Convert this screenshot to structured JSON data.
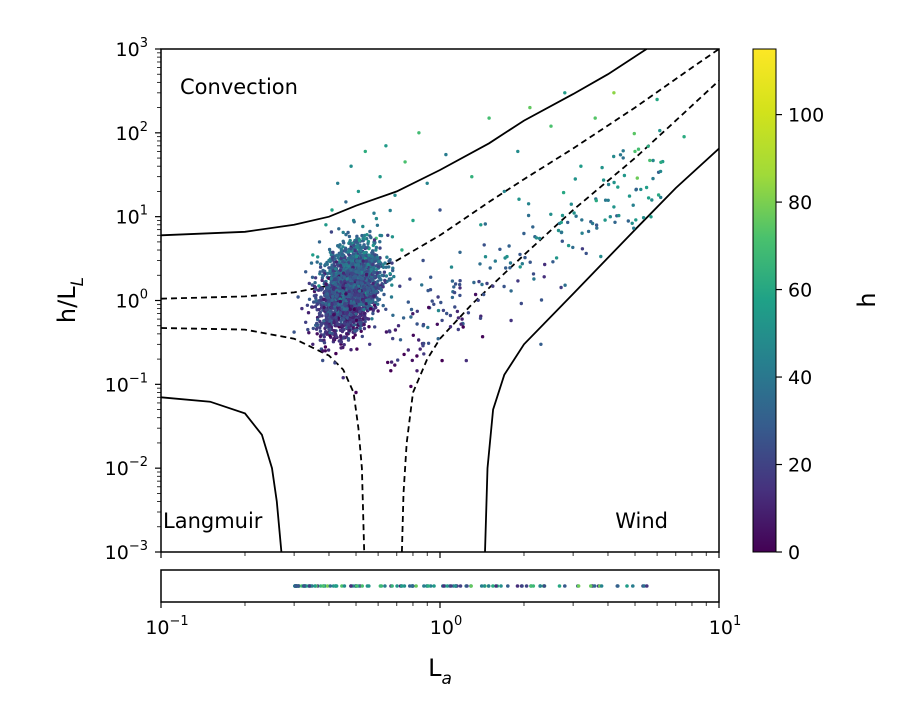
{
  "chart_data": {
    "type": "scatter",
    "title": "",
    "xlabel": "L",
    "xlabel_sub": "a",
    "ylabel": "h/L",
    "ylabel_sub": "L",
    "xscale": "log",
    "yscale": "log",
    "xlim": [
      0.1,
      10
    ],
    "ylim": [
      0.001,
      1000
    ],
    "x_ticks": [
      {
        "value": 0.1,
        "base": "10",
        "exp": "−1"
      },
      {
        "value": 1,
        "base": "10",
        "exp": "0"
      },
      {
        "value": 10,
        "base": "10",
        "exp": "1"
      }
    ],
    "y_ticks": [
      {
        "value": 0.001,
        "base": "10",
        "exp": "−3"
      },
      {
        "value": 0.01,
        "base": "10",
        "exp": "−2"
      },
      {
        "value": 0.1,
        "base": "10",
        "exp": "−1"
      },
      {
        "value": 1,
        "base": "10",
        "exp": "0"
      },
      {
        "value": 10,
        "base": "10",
        "exp": "1"
      },
      {
        "value": 100,
        "base": "10",
        "exp": "2"
      },
      {
        "value": 1000,
        "base": "10",
        "exp": "3"
      }
    ],
    "grid": false,
    "regions": [
      {
        "label": "Convection"
      },
      {
        "label": "Langmuir"
      },
      {
        "label": "Wind"
      }
    ],
    "colorbar": {
      "label": "h",
      "colormap": "viridis",
      "range": [
        0,
        115
      ],
      "ticks": [
        0,
        20,
        40,
        60,
        80,
        100
      ]
    },
    "boundary_lines": [
      {
        "style": "solid",
        "branches": [
          [
            [
              0.1,
              6.0
            ],
            [
              0.2,
              6.6
            ],
            [
              0.3,
              8.0
            ],
            [
              0.4,
              10.0
            ],
            [
              0.5,
              13.5
            ],
            [
              0.7,
              20.0
            ],
            [
              1.0,
              36.0
            ],
            [
              1.5,
              75.0
            ],
            [
              2.0,
              140.0
            ],
            [
              3.0,
              290.0
            ],
            [
              4.0,
              500.0
            ],
            [
              5.5,
              1000.0
            ]
          ],
          [
            [
              0.1,
              0.07
            ],
            [
              0.15,
              0.062
            ],
            [
              0.2,
              0.045
            ],
            [
              0.23,
              0.025
            ],
            [
              0.25,
              0.01
            ],
            [
              0.26,
              0.004
            ],
            [
              0.27,
              0.001
            ]
          ],
          [
            [
              1.45,
              0.001
            ],
            [
              1.48,
              0.01
            ],
            [
              1.55,
              0.05
            ],
            [
              1.7,
              0.13
            ],
            [
              2.0,
              0.3
            ],
            [
              3.0,
              1.2
            ],
            [
              5.0,
              7.0
            ],
            [
              7.0,
              22.0
            ],
            [
              10.0,
              65.0
            ]
          ]
        ]
      },
      {
        "style": "dashed",
        "branches": [
          [
            [
              0.1,
              1.05
            ],
            [
              0.2,
              1.12
            ],
            [
              0.3,
              1.25
            ],
            [
              0.4,
              1.5
            ],
            [
              0.5,
              2.0
            ],
            [
              0.7,
              3.0
            ],
            [
              1.0,
              6.0
            ],
            [
              1.5,
              15.0
            ],
            [
              2.0,
              28.0
            ],
            [
              3.0,
              65.0
            ],
            [
              5.0,
              200.0
            ],
            [
              8.0,
              600.0
            ],
            [
              10.0,
              1000.0
            ]
          ],
          [
            [
              0.1,
              0.47
            ],
            [
              0.2,
              0.45
            ],
            [
              0.3,
              0.35
            ],
            [
              0.4,
              0.22
            ],
            [
              0.45,
              0.15
            ],
            [
              0.49,
              0.08
            ],
            [
              0.51,
              0.03
            ],
            [
              0.525,
              0.01
            ],
            [
              0.535,
              0.001
            ]
          ],
          [
            [
              0.73,
              0.001
            ],
            [
              0.74,
              0.005
            ],
            [
              0.76,
              0.02
            ],
            [
              0.8,
              0.08
            ],
            [
              0.9,
              0.2
            ],
            [
              1.0,
              0.35
            ],
            [
              1.3,
              0.9
            ],
            [
              2.0,
              3.5
            ],
            [
              3.0,
              12.0
            ],
            [
              5.0,
              50.0
            ],
            [
              7.0,
              140.0
            ],
            [
              10.0,
              420.0
            ]
          ]
        ]
      }
    ],
    "scatter_note_points": [
      [
        0.3,
        0.42
      ],
      [
        0.31,
        1.1
      ],
      [
        0.32,
        0.8
      ],
      [
        0.33,
        2.2
      ],
      [
        0.33,
        0.55
      ],
      [
        0.34,
        1.6
      ],
      [
        0.35,
        0.3
      ],
      [
        0.35,
        3.5
      ],
      [
        0.36,
        1.0
      ],
      [
        0.37,
        5.0
      ],
      [
        0.37,
        0.65
      ],
      [
        0.38,
        2.0
      ],
      [
        0.38,
        0.25
      ],
      [
        0.39,
        8.0
      ],
      [
        0.39,
        1.3
      ],
      [
        0.4,
        0.45
      ],
      [
        0.4,
        3.0
      ],
      [
        0.41,
        12.0
      ],
      [
        0.41,
        0.9
      ],
      [
        0.42,
        1.8
      ],
      [
        0.42,
        0.18
      ],
      [
        0.43,
        4.5
      ],
      [
        0.43,
        25.0
      ],
      [
        0.44,
        0.7
      ],
      [
        0.44,
        2.6
      ],
      [
        0.45,
        0.12
      ],
      [
        0.45,
        6.5
      ],
      [
        0.46,
        1.2
      ],
      [
        0.46,
        15.0
      ],
      [
        0.47,
        0.35
      ],
      [
        0.47,
        3.8
      ],
      [
        0.48,
        40.0
      ],
      [
        0.48,
        1.6
      ],
      [
        0.49,
        0.55
      ],
      [
        0.49,
        9.0
      ],
      [
        0.5,
        0.08
      ],
      [
        0.5,
        2.2
      ],
      [
        0.51,
        20.0
      ],
      [
        0.52,
        0.9
      ],
      [
        0.53,
        5.5
      ],
      [
        0.54,
        60.0
      ],
      [
        0.55,
        1.4
      ],
      [
        0.56,
        0.3
      ],
      [
        0.57,
        3.0
      ],
      [
        0.58,
        11.0
      ],
      [
        0.6,
        0.75
      ],
      [
        0.61,
        30.0
      ],
      [
        0.62,
        2.0
      ],
      [
        0.64,
        70.0
      ],
      [
        0.65,
        6.0
      ],
      [
        0.67,
        1.1
      ],
      [
        0.69,
        18.0
      ],
      [
        0.71,
        0.5
      ],
      [
        0.73,
        4.0
      ],
      [
        0.75,
        45.0
      ],
      [
        0.78,
        1.8
      ],
      [
        0.8,
        9.0
      ],
      [
        0.84,
        100.0
      ],
      [
        0.87,
        3.0
      ],
      [
        0.9,
        25.0
      ],
      [
        0.95,
        0.9
      ],
      [
        1.0,
        12.0
      ],
      [
        1.05,
        55.0
      ],
      [
        1.1,
        2.5
      ],
      [
        1.2,
        0.6
      ],
      [
        1.3,
        30.0
      ],
      [
        1.4,
        8.0
      ],
      [
        1.5,
        150.0
      ],
      [
        1.7,
        20.0
      ],
      [
        1.9,
        60.0
      ],
      [
        2.1,
        200.0
      ],
      [
        2.3,
        0.3
      ],
      [
        2.5,
        120.0
      ],
      [
        2.8,
        300.0
      ],
      [
        3.2,
        40.0
      ],
      [
        3.6,
        150.0
      ],
      [
        4.2,
        300.0
      ],
      [
        5.0,
        60.0
      ],
      [
        6.0,
        250.0
      ],
      [
        7.5,
        90.0
      ]
    ],
    "colorbar_ticks_note": "colour encodes h"
  }
}
